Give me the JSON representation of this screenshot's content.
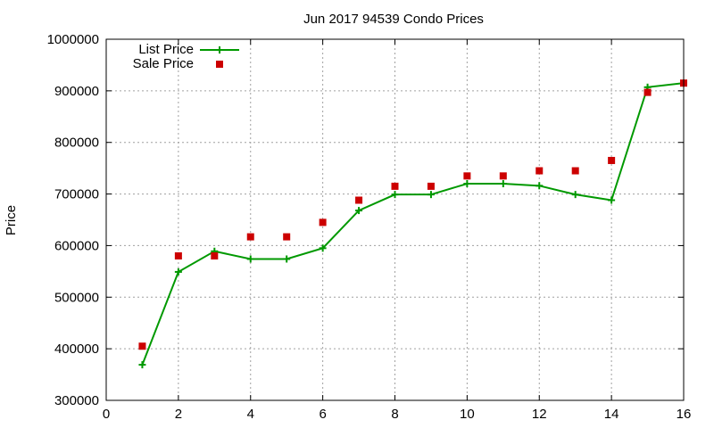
{
  "chart_data": {
    "type": "line",
    "title": "Jun 2017 94539 Condo Prices",
    "xlabel": "",
    "ylabel": "Price",
    "xlim": [
      0,
      16
    ],
    "ylim": [
      300000,
      1000000
    ],
    "x_ticks": [
      "0",
      "2",
      "4",
      "6",
      "8",
      "10",
      "12",
      "14",
      "16"
    ],
    "y_ticks": [
      "300000",
      "400000",
      "500000",
      "600000",
      "700000",
      "800000",
      "900000",
      "1000000"
    ],
    "grid": true,
    "legend_position": "top-left",
    "series": [
      {
        "name": "List Price",
        "style": "line-with-plus-markers",
        "color": "#009900",
        "x": [
          1,
          2,
          3,
          4,
          5,
          6,
          7,
          8,
          9,
          10,
          11,
          12,
          13,
          14,
          15,
          16
        ],
        "y": [
          369000,
          549000,
          589000,
          574000,
          574000,
          595000,
          668000,
          699000,
          699000,
          720000,
          720000,
          716000,
          699000,
          688000,
          907000,
          915000
        ]
      },
      {
        "name": "Sale Price",
        "style": "square-markers",
        "color": "#cc0000",
        "x": [
          1,
          2,
          3,
          4,
          5,
          6,
          7,
          8,
          9,
          10,
          11,
          12,
          13,
          14,
          15,
          16
        ],
        "y": [
          405000,
          580000,
          580000,
          617000,
          617000,
          645000,
          688000,
          715000,
          715000,
          735000,
          735000,
          745000,
          745000,
          765000,
          897000,
          915000
        ]
      }
    ]
  }
}
